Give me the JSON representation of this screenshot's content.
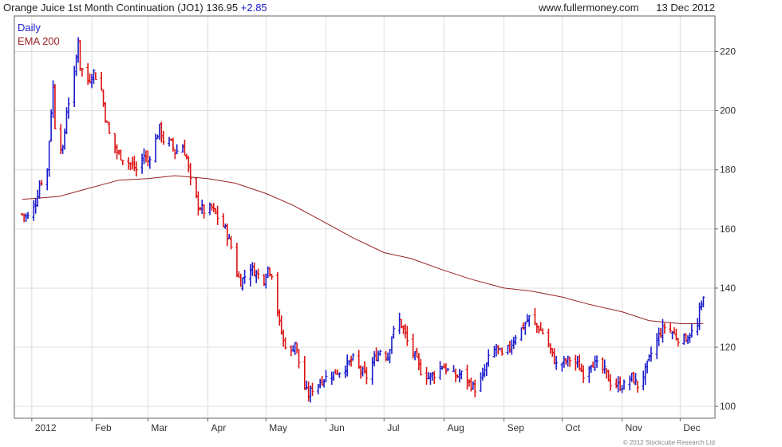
{
  "header": {
    "instrument": "Orange Juice 1st Month Continuation (JO1)",
    "price": "136.95",
    "change": "+2.85",
    "website": "www.fullermoney.com",
    "date": "13 Dec 2012"
  },
  "footer": {
    "copyright": "© 2012 Stockcube Research Ltd"
  },
  "colors": {
    "up": "#1a1acc",
    "down": "#dd1111",
    "ema": "#992222",
    "grid": "#dddddd",
    "axis": "#666666"
  },
  "chart_data": {
    "type": "line",
    "title": "Orange Juice 1st Month Continuation (JO1)",
    "xlabel": "",
    "ylabel": "",
    "legend": [
      "Daily",
      "EMA 200"
    ],
    "legend_position": "top-left",
    "grid": true,
    "ylim": [
      96,
      232
    ],
    "yticks": [
      100,
      120,
      140,
      160,
      180,
      200,
      220
    ],
    "xticks": [
      "2012",
      "Feb",
      "Mar",
      "Apr",
      "May",
      "Jun",
      "Jul",
      "Aug",
      "Sep",
      "Oct",
      "Nov",
      "Dec"
    ],
    "x_months": [
      "Jan-2012",
      "Feb",
      "Mar",
      "Apr",
      "May",
      "Jun",
      "Jul",
      "Aug",
      "Sep",
      "Oct",
      "Nov",
      "Dec"
    ],
    "daily": [
      [
        "2011-12-27",
        165
      ],
      [
        "2011-12-30",
        164
      ],
      [
        "2012-01-03",
        169
      ],
      [
        "2012-01-05",
        175
      ],
      [
        "2012-01-09",
        180
      ],
      [
        "2012-01-10",
        190
      ],
      [
        "2012-01-11",
        200
      ],
      [
        "2012-01-12",
        208
      ],
      [
        "2012-01-13",
        195
      ],
      [
        "2012-01-17",
        186
      ],
      [
        "2012-01-19",
        200
      ],
      [
        "2012-01-23",
        212
      ],
      [
        "2012-01-25",
        224
      ],
      [
        "2012-01-26",
        215
      ],
      [
        "2012-01-30",
        210
      ],
      [
        "2012-02-02",
        213
      ],
      [
        "2012-02-06",
        207
      ],
      [
        "2012-02-08",
        198
      ],
      [
        "2012-02-10",
        192
      ],
      [
        "2012-02-14",
        186
      ],
      [
        "2012-02-17",
        184
      ],
      [
        "2012-02-21",
        182
      ],
      [
        "2012-02-24",
        180
      ],
      [
        "2012-02-28",
        185
      ],
      [
        "2012-03-01",
        183
      ],
      [
        "2012-03-05",
        190
      ],
      [
        "2012-03-07",
        194
      ],
      [
        "2012-03-09",
        190
      ],
      [
        "2012-03-13",
        189
      ],
      [
        "2012-03-15",
        186
      ],
      [
        "2012-03-19",
        188
      ],
      [
        "2012-03-21",
        184
      ],
      [
        "2012-03-23",
        176
      ],
      [
        "2012-03-27",
        168
      ],
      [
        "2012-03-30",
        166
      ],
      [
        "2012-04-03",
        167
      ],
      [
        "2012-04-05",
        165
      ],
      [
        "2012-04-10",
        160
      ],
      [
        "2012-04-13",
        154
      ],
      [
        "2012-04-16",
        145
      ],
      [
        "2012-04-18",
        142
      ],
      [
        "2012-04-23",
        147
      ],
      [
        "2012-04-26",
        145
      ],
      [
        "2012-04-30",
        143
      ],
      [
        "2012-05-02",
        147
      ],
      [
        "2012-05-04",
        145
      ],
      [
        "2012-05-08",
        128
      ],
      [
        "2012-05-10",
        122
      ],
      [
        "2012-05-14",
        118
      ],
      [
        "2012-05-16",
        122
      ],
      [
        "2012-05-18",
        115
      ],
      [
        "2012-05-21",
        106
      ],
      [
        "2012-05-23",
        104
      ],
      [
        "2012-05-25",
        106
      ],
      [
        "2012-05-30",
        109
      ],
      [
        "2012-06-04",
        111
      ],
      [
        "2012-06-08",
        112
      ],
      [
        "2012-06-12",
        114
      ],
      [
        "2012-06-15",
        116
      ],
      [
        "2012-06-19",
        112
      ],
      [
        "2012-06-22",
        110
      ],
      [
        "2012-06-26",
        116
      ],
      [
        "2012-06-29",
        119
      ],
      [
        "2012-07-03",
        117
      ],
      [
        "2012-07-05",
        124
      ],
      [
        "2012-07-09",
        129
      ],
      [
        "2012-07-11",
        126
      ],
      [
        "2012-07-13",
        122
      ],
      [
        "2012-07-17",
        117
      ],
      [
        "2012-07-20",
        112
      ],
      [
        "2012-07-24",
        110
      ],
      [
        "2012-07-27",
        111
      ],
      [
        "2012-07-31",
        114
      ],
      [
        "2012-08-03",
        112
      ],
      [
        "2012-08-07",
        110
      ],
      [
        "2012-08-10",
        111
      ],
      [
        "2012-08-14",
        108
      ],
      [
        "2012-08-17",
        106
      ],
      [
        "2012-08-21",
        110
      ],
      [
        "2012-08-24",
        116
      ],
      [
        "2012-08-28",
        120
      ],
      [
        "2012-08-31",
        117
      ],
      [
        "2012-09-04",
        120
      ],
      [
        "2012-09-07",
        124
      ],
      [
        "2012-09-11",
        127
      ],
      [
        "2012-09-14",
        130
      ],
      [
        "2012-09-18",
        127
      ],
      [
        "2012-09-21",
        125
      ],
      [
        "2012-09-25",
        119
      ],
      [
        "2012-09-28",
        114
      ],
      [
        "2012-10-02",
        115
      ],
      [
        "2012-10-05",
        116
      ],
      [
        "2012-10-09",
        114
      ],
      [
        "2012-10-12",
        111
      ],
      [
        "2012-10-16",
        115
      ],
      [
        "2012-10-19",
        114
      ],
      [
        "2012-10-23",
        112
      ],
      [
        "2012-10-26",
        108
      ],
      [
        "2012-10-30",
        107
      ],
      [
        "2012-11-02",
        107
      ],
      [
        "2012-11-06",
        110
      ],
      [
        "2012-11-09",
        107
      ],
      [
        "2012-11-13",
        112
      ],
      [
        "2012-11-16",
        118
      ],
      [
        "2012-11-20",
        124
      ],
      [
        "2012-11-23",
        127
      ],
      [
        "2012-11-27",
        125
      ],
      [
        "2012-11-30",
        123
      ],
      [
        "2012-12-04",
        123
      ],
      [
        "2012-12-07",
        125
      ],
      [
        "2012-12-10",
        127
      ],
      [
        "2012-12-11",
        132
      ],
      [
        "2012-12-12",
        134
      ],
      [
        "2012-12-13",
        136.95
      ]
    ],
    "ema200": [
      [
        "2011-12-27",
        170
      ],
      [
        "2012-01-15",
        171
      ],
      [
        "2012-02-01",
        174
      ],
      [
        "2012-02-15",
        176.5
      ],
      [
        "2012-03-01",
        177
      ],
      [
        "2012-03-15",
        178
      ],
      [
        "2012-04-01",
        177
      ],
      [
        "2012-04-15",
        175.5
      ],
      [
        "2012-05-01",
        172
      ],
      [
        "2012-05-15",
        168
      ],
      [
        "2012-06-01",
        162
      ],
      [
        "2012-06-15",
        157
      ],
      [
        "2012-07-01",
        152
      ],
      [
        "2012-07-15",
        150
      ],
      [
        "2012-08-01",
        146
      ],
      [
        "2012-08-15",
        143
      ],
      [
        "2012-09-01",
        140
      ],
      [
        "2012-09-15",
        139
      ],
      [
        "2012-10-01",
        137
      ],
      [
        "2012-10-15",
        134.5
      ],
      [
        "2012-11-01",
        132
      ],
      [
        "2012-11-15",
        129
      ],
      [
        "2012-12-01",
        128
      ],
      [
        "2012-12-13",
        128
      ]
    ]
  }
}
